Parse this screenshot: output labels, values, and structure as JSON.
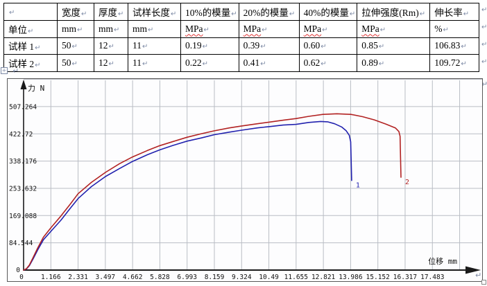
{
  "document": {
    "marks": {
      "cell_end": "↵",
      "paragraph": "↵",
      "handle": "+"
    },
    "table": {
      "headers": [
        "",
        "宽度",
        "厚度",
        "试样长度",
        "10%的模量",
        "20%的模量",
        "40%的模量",
        "拉伸强度(Rm)",
        "伸长率"
      ],
      "rows": [
        {
          "label": "单位",
          "cells": [
            "mm",
            "mm",
            "mm",
            "MPa",
            "MPa",
            "MPa",
            "MPa",
            "%"
          ],
          "spell": [
            false,
            false,
            false,
            true,
            true,
            true,
            true,
            false
          ]
        },
        {
          "label": "试样 1",
          "cells": [
            "50",
            "12",
            "11",
            "0.19",
            "0.39",
            "0.60",
            "0.85",
            "106.83"
          ],
          "spell": [
            false,
            false,
            false,
            false,
            false,
            false,
            false,
            false
          ]
        },
        {
          "label": "试样 2",
          "cells": [
            "50",
            "12",
            "11",
            "0.22",
            "0.41",
            "0.62",
            "0.89",
            "109.72"
          ],
          "spell": [
            false,
            false,
            false,
            false,
            false,
            false,
            false,
            false
          ]
        }
      ]
    }
  },
  "chart_data": {
    "type": "line",
    "title": "",
    "xlabel": "位移 mm",
    "ylabel": "力 N",
    "xlim": [
      0,
      19.6
    ],
    "ylim": [
      0,
      591.808
    ],
    "x_ticks": [
      1.166,
      2.331,
      3.497,
      4.662,
      5.828,
      6.993,
      8.159,
      9.324,
      10.49,
      11.655,
      12.821,
      13.986,
      15.152,
      16.317,
      17.483
    ],
    "y_ticks": [
      84.544,
      169.088,
      253.632,
      338.176,
      422.72,
      507.264
    ],
    "origin_label": "0",
    "grid": true,
    "legend_position": "curve-end-labels",
    "series": [
      {
        "name": "1",
        "color": "#2121ae",
        "points": [
          [
            0,
            0
          ],
          [
            0.12,
            3
          ],
          [
            0.25,
            14
          ],
          [
            0.4,
            34
          ],
          [
            0.6,
            62
          ],
          [
            0.85,
            94
          ],
          [
            1.166,
            120
          ],
          [
            1.6,
            155
          ],
          [
            2.0,
            192
          ],
          [
            2.331,
            222
          ],
          [
            2.9,
            259
          ],
          [
            3.497,
            290
          ],
          [
            4.1,
            315
          ],
          [
            4.662,
            337
          ],
          [
            5.3,
            358
          ],
          [
            5.828,
            373
          ],
          [
            6.4,
            387
          ],
          [
            6.993,
            400
          ],
          [
            7.6,
            410
          ],
          [
            8.159,
            420
          ],
          [
            8.8,
            428
          ],
          [
            9.324,
            434
          ],
          [
            10.0,
            441
          ],
          [
            10.49,
            445
          ],
          [
            11.1,
            450
          ],
          [
            11.655,
            452
          ],
          [
            12.2,
            458
          ],
          [
            12.7,
            461
          ],
          [
            13.0,
            460
          ],
          [
            13.3,
            454
          ],
          [
            13.6,
            444
          ],
          [
            13.8,
            432
          ],
          [
            13.93,
            418
          ],
          [
            13.99,
            398
          ],
          [
            14.01,
            340
          ],
          [
            14.03,
            278
          ]
        ]
      },
      {
        "name": "2",
        "color": "#b22222",
        "points": [
          [
            0,
            0
          ],
          [
            0.12,
            4
          ],
          [
            0.25,
            16
          ],
          [
            0.4,
            38
          ],
          [
            0.6,
            68
          ],
          [
            0.85,
            102
          ],
          [
            1.166,
            131
          ],
          [
            1.6,
            168
          ],
          [
            2.0,
            205
          ],
          [
            2.331,
            237
          ],
          [
            2.9,
            272
          ],
          [
            3.497,
            303
          ],
          [
            4.1,
            330
          ],
          [
            4.662,
            351
          ],
          [
            5.3,
            371
          ],
          [
            5.828,
            386
          ],
          [
            6.4,
            399
          ],
          [
            6.993,
            412
          ],
          [
            7.6,
            423
          ],
          [
            8.159,
            432
          ],
          [
            8.8,
            441
          ],
          [
            9.324,
            447
          ],
          [
            10.0,
            454
          ],
          [
            10.49,
            459
          ],
          [
            11.1,
            465
          ],
          [
            11.655,
            470
          ],
          [
            12.2,
            477
          ],
          [
            12.8,
            483
          ],
          [
            13.4,
            485
          ],
          [
            14.0,
            483
          ],
          [
            14.5,
            476
          ],
          [
            15.0,
            466
          ],
          [
            15.5,
            453
          ],
          [
            15.9,
            441
          ],
          [
            16.05,
            430
          ],
          [
            16.1,
            415
          ],
          [
            16.12,
            355
          ],
          [
            16.14,
            288
          ]
        ]
      }
    ],
    "colors": {
      "grid": "#b9bdc4",
      "axis": "#1a1a1a",
      "tick_text": "#111111"
    }
  }
}
